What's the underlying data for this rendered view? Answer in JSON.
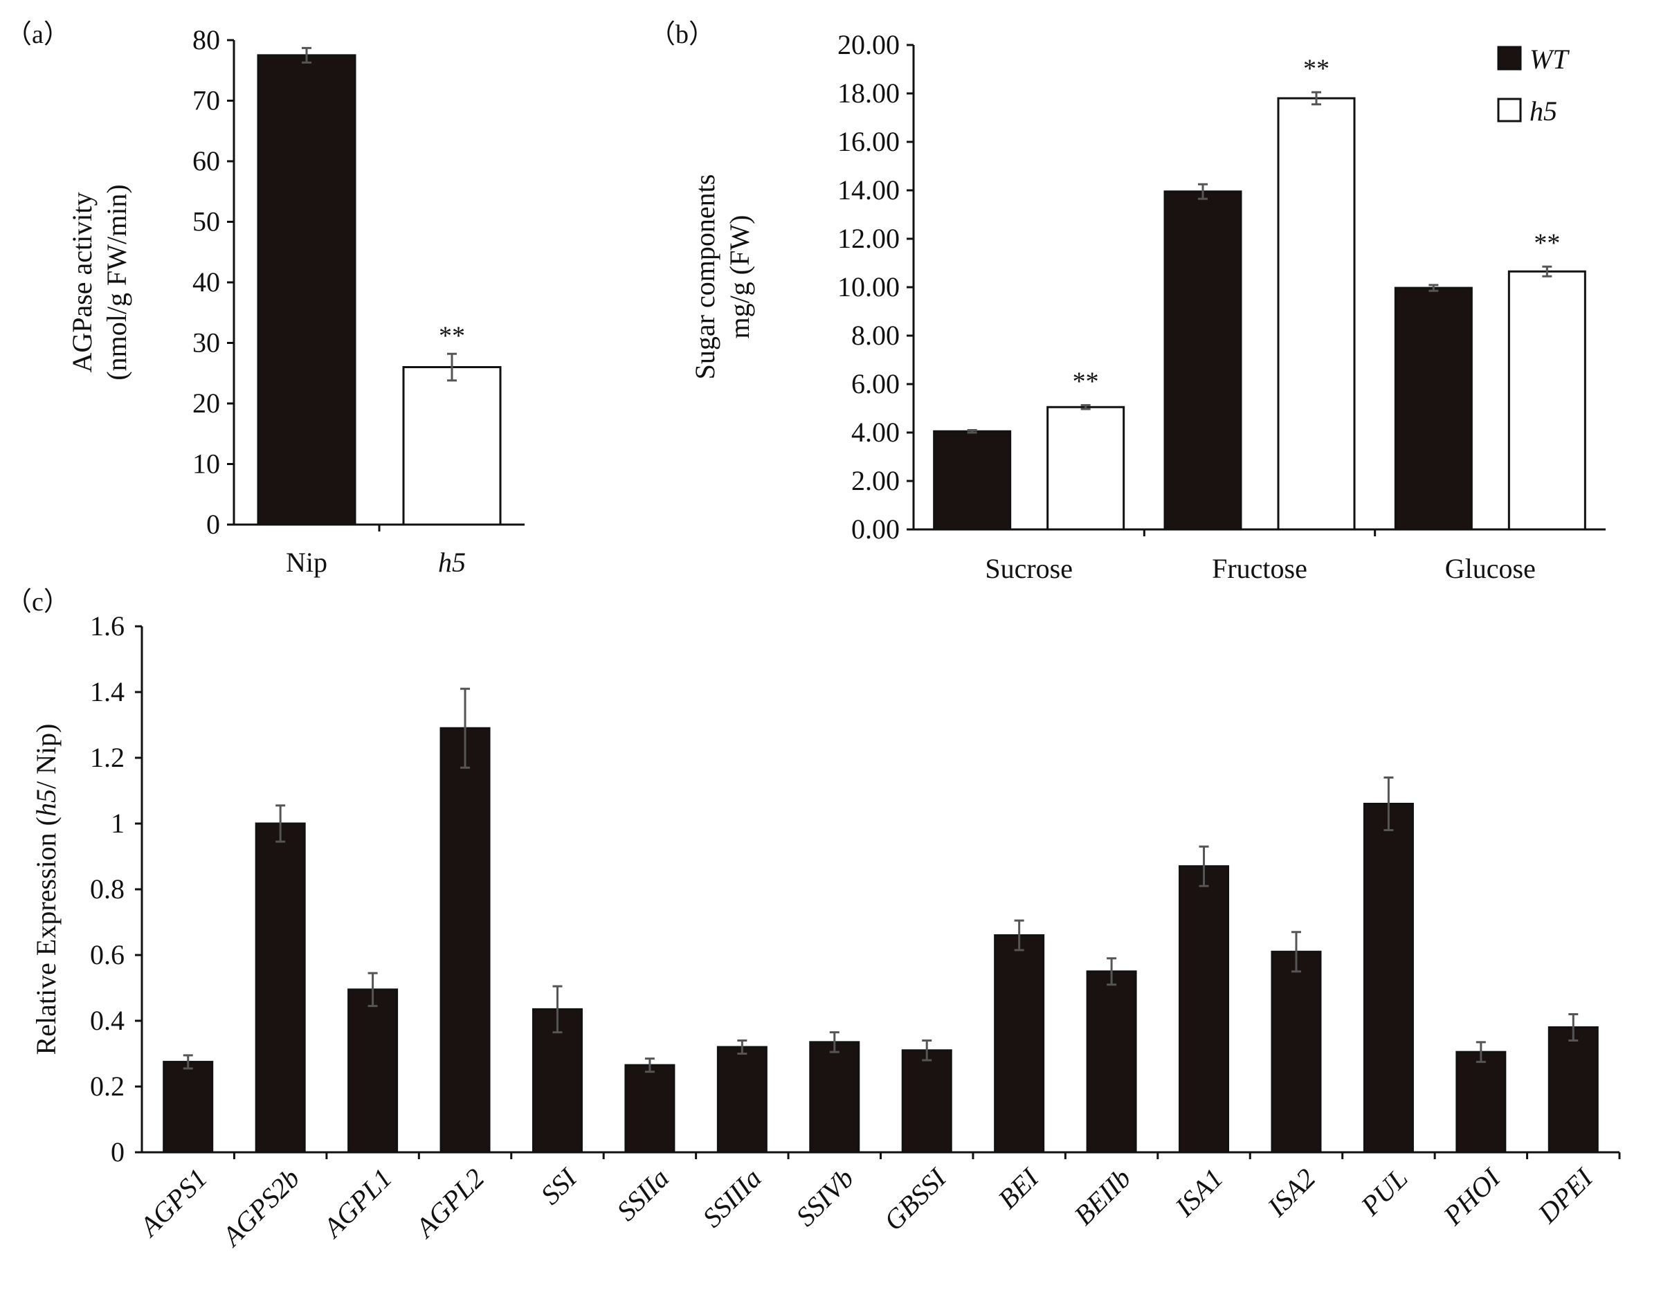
{
  "colors": {
    "filled": "#1a1210",
    "open": "#ffffff",
    "stroke": "#111111",
    "error": "#555555"
  },
  "chart_data": [
    {
      "id": "a",
      "type": "bar",
      "panel_label": "（a）",
      "ylabel_line1": "AGPase activity",
      "ylabel_line2": "(nmol/g FW/min)",
      "ylim": [
        0,
        80
      ],
      "yticks": [
        "0",
        "10",
        "20",
        "30",
        "40",
        "50",
        "60",
        "70",
        "80"
      ],
      "categories": [
        "Nip",
        "h5"
      ],
      "category_italic": [
        false,
        true
      ],
      "values": [
        77.5,
        26.0
      ],
      "errors": [
        1.2,
        2.2
      ],
      "fills": [
        "filled",
        "open"
      ],
      "significance": [
        "",
        "**"
      ]
    },
    {
      "id": "b",
      "type": "bar",
      "panel_label": "（b）",
      "ylabel_line1": "Sugar components",
      "ylabel_line2": "mg/g (FW)",
      "ylim": [
        0,
        20
      ],
      "yticks": [
        "0.00",
        "2.00",
        "4.00",
        "6.00",
        "8.00",
        "10.00",
        "12.00",
        "14.00",
        "16.00",
        "18.00",
        "20.00"
      ],
      "categories": [
        "Sucrose",
        "Fructose",
        "Glucose"
      ],
      "legend": [
        "WT",
        "h5"
      ],
      "series": [
        {
          "name": "WT",
          "fill": "filled",
          "values": [
            4.05,
            13.95,
            9.97
          ],
          "errors": [
            0.05,
            0.3,
            0.12
          ],
          "significance": [
            "",
            "",
            ""
          ]
        },
        {
          "name": "h5",
          "fill": "open",
          "values": [
            5.05,
            17.8,
            10.65
          ],
          "errors": [
            0.08,
            0.25,
            0.2
          ],
          "significance": [
            "**",
            "**",
            "**"
          ]
        }
      ]
    },
    {
      "id": "c",
      "type": "bar",
      "panel_label": "（c）",
      "ylabel_pre": "Relative Expression (",
      "ylabel_italic": "h5",
      "ylabel_post": "/ Nip)",
      "ylim": [
        0,
        1.6
      ],
      "yticks": [
        "0",
        "0.2",
        "0.4",
        "0.6",
        "0.8",
        "1",
        "1.2",
        "1.4",
        "1.6"
      ],
      "categories": [
        "AGPS1",
        "AGPS2b",
        "AGPL1",
        "AGPL2",
        "SSI",
        "SSIIa",
        "SSIIIa",
        "SSIVb",
        "GBSSI",
        "BEI",
        "BEIIb",
        "ISA1",
        "ISA2",
        "PUL",
        "PHOI",
        "DPEI"
      ],
      "values": [
        0.275,
        1.0,
        0.495,
        1.29,
        0.435,
        0.265,
        0.32,
        0.335,
        0.31,
        0.66,
        0.55,
        0.87,
        0.61,
        1.06,
        0.305,
        0.38
      ],
      "errors": [
        0.02,
        0.055,
        0.05,
        0.12,
        0.07,
        0.02,
        0.02,
        0.03,
        0.03,
        0.045,
        0.04,
        0.06,
        0.06,
        0.08,
        0.03,
        0.04
      ]
    }
  ]
}
